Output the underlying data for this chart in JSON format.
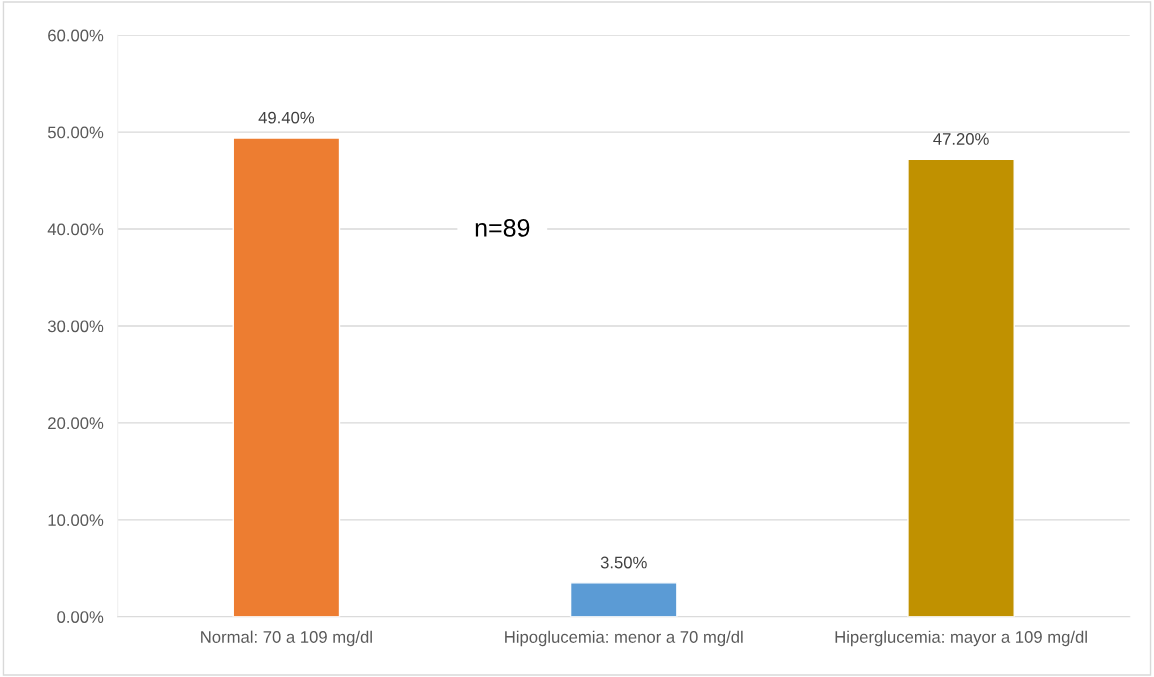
{
  "chart_data": {
    "type": "bar",
    "categories": [
      "Normal: 70 a 109 mg/dl",
      "Hipoglucemia: menor a 70 mg/dl",
      "Hiperglucemia: mayor a 109 mg/dl"
    ],
    "values": [
      49.4,
      3.5,
      47.2
    ],
    "colors": [
      "#ed7d31",
      "#5b9bd5",
      "#c09100"
    ],
    "value_labels": [
      "49.40%",
      "3.50%",
      "47.20%"
    ],
    "ylim": [
      0,
      60
    ],
    "yticks": [
      {
        "value": 0,
        "label": "0.00%"
      },
      {
        "value": 10,
        "label": "10.00%"
      },
      {
        "value": 20,
        "label": "20.00%"
      },
      {
        "value": 30,
        "label": "30.00%"
      },
      {
        "value": 40,
        "label": "40.00%"
      },
      {
        "value": 50,
        "label": "50.00%"
      },
      {
        "value": 60,
        "label": "60.00%"
      }
    ],
    "grid": "y",
    "annotations": [
      "n=89"
    ]
  }
}
